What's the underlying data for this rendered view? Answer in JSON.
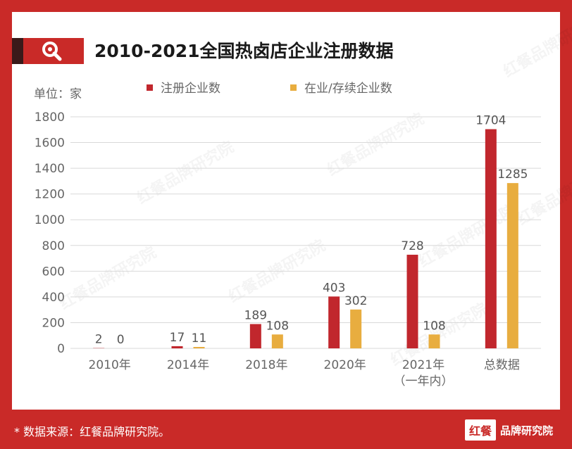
{
  "title": "2010-2021全国热卤店企业注册数据",
  "unit_label": "单位：家",
  "footer": {
    "note": "* 数据来源：红餐品牌研究院。",
    "logo_mark": "红餐",
    "logo_name": "品牌研究院"
  },
  "watermark": "红餐品牌研究院",
  "colors": {
    "background": "#c92a28",
    "registered": "#c1272d",
    "active": "#e8ad3f",
    "grid": "#d9d9d9"
  },
  "icons": {
    "title_icon": "search-icon"
  },
  "chart_data": {
    "type": "bar",
    "categories": [
      "2010年",
      "2014年",
      "2018年",
      "2020年",
      "2021年\n（一年内）",
      "总数据"
    ],
    "series": [
      {
        "name": "注册企业数",
        "values": [
          2,
          17,
          189,
          403,
          728,
          1704
        ]
      },
      {
        "name": "在业/存续企业数",
        "values": [
          0,
          11,
          108,
          302,
          108,
          1285
        ]
      }
    ],
    "yticks": [
      0,
      200,
      400,
      600,
      800,
      1000,
      1200,
      1400,
      1600,
      1800
    ],
    "ylim": [
      0,
      1800
    ],
    "grid": true,
    "legend": "top"
  }
}
